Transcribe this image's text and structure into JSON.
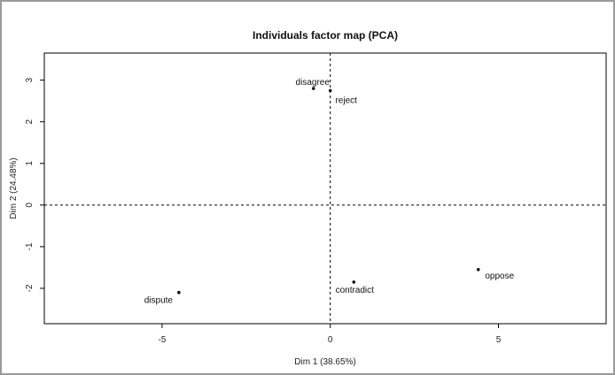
{
  "chart_data": {
    "type": "scatter",
    "title": "Individuals factor map (PCA)",
    "xlabel": "Dim 1 (38.65%)",
    "ylabel": "Dim 2 (24.48%)",
    "xlim": [
      -8.5,
      8.2
    ],
    "ylim": [
      -2.85,
      3.65
    ],
    "xticks": [
      -5,
      0,
      5
    ],
    "yticks": [
      -2,
      -1,
      0,
      1,
      2,
      3
    ],
    "reference_lines": {
      "x": 0,
      "y": 0,
      "style": "dashed"
    },
    "points": [
      {
        "label": "disagree",
        "x": -0.5,
        "y": 2.8
      },
      {
        "label": "reject",
        "x": 0.0,
        "y": 2.75
      },
      {
        "label": "dispute",
        "x": -4.5,
        "y": -2.1
      },
      {
        "label": "contradict",
        "x": 0.7,
        "y": -1.85
      },
      {
        "label": "oppose",
        "x": 4.4,
        "y": -1.55
      }
    ]
  },
  "colors": {
    "points": "#111111",
    "frame": "#000000",
    "background": "#ffffff"
  }
}
